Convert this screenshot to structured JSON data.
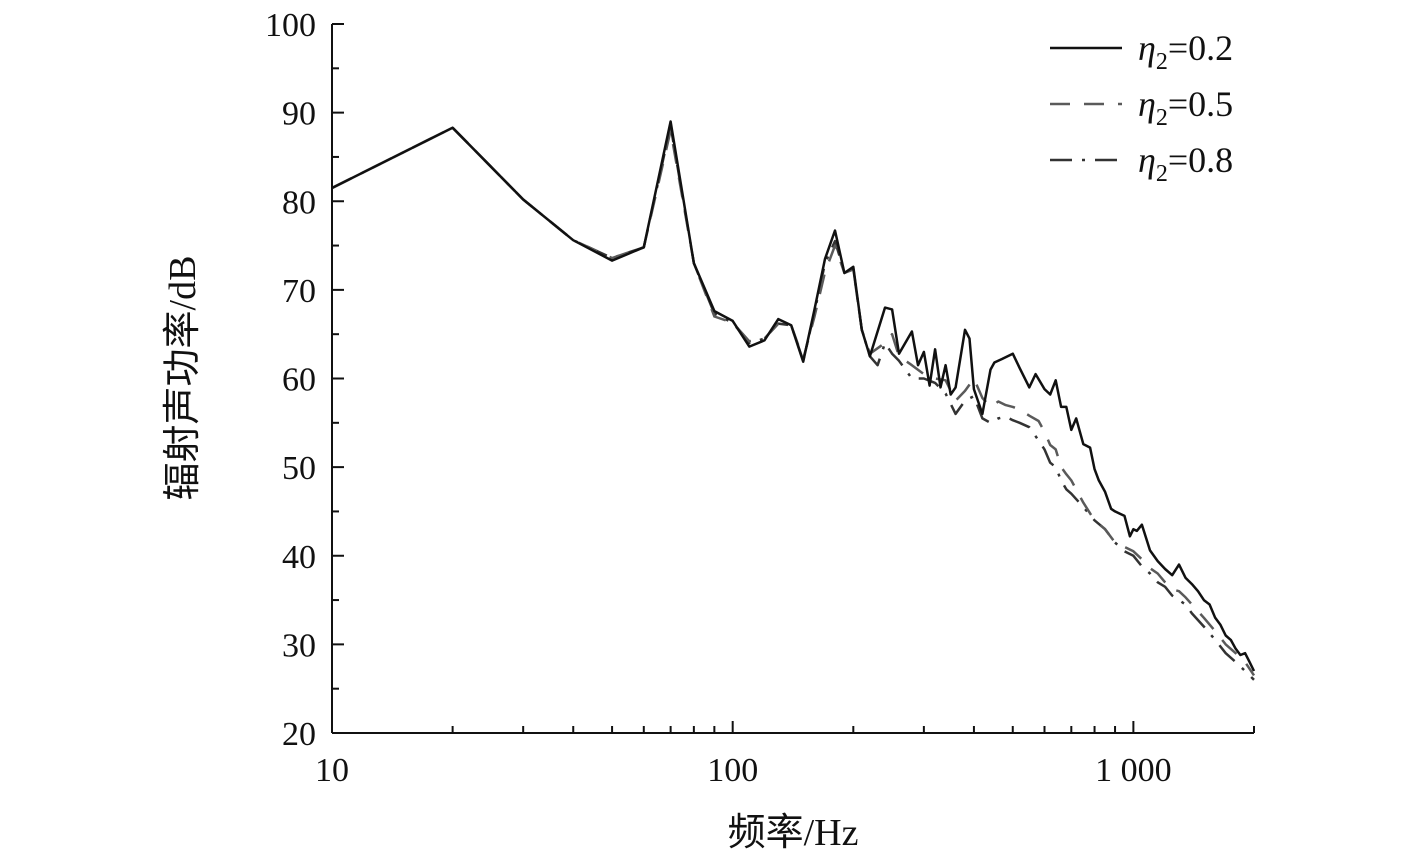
{
  "chart_data": {
    "type": "line",
    "title": "",
    "xlabel": "频率/Hz",
    "ylabel": "辐射声功率/dB",
    "x_scale": "log",
    "xlim": [
      10,
      2000
    ],
    "ylim": [
      20,
      100
    ],
    "x_ticks": [
      10,
      100,
      1000
    ],
    "x_tick_labels": [
      "10",
      "100",
      "1 000"
    ],
    "y_ticks": [
      20,
      30,
      40,
      50,
      60,
      70,
      80,
      90,
      100
    ],
    "y_tick_labels": [
      "20",
      "30",
      "40",
      "50",
      "60",
      "70",
      "80",
      "90",
      "100"
    ],
    "grid": false,
    "legend_position": "top-right",
    "series": [
      {
        "name": "η2=0.2",
        "legend_symbol": "η",
        "legend_sub": "2",
        "legend_value": "=0.2",
        "color": "#111111",
        "dash": "",
        "x": [
          10,
          20,
          30,
          40,
          50,
          60,
          70,
          80,
          90,
          100,
          110,
          120,
          130,
          140,
          150,
          160,
          170,
          180,
          190,
          200,
          210,
          220,
          240,
          250,
          260,
          280,
          290,
          300,
          310,
          320,
          330,
          340,
          350,
          360,
          380,
          390,
          400,
          420,
          440,
          450,
          470,
          500,
          520,
          550,
          570,
          600,
          620,
          640,
          660,
          680,
          700,
          720,
          750,
          780,
          800,
          820,
          850,
          880,
          900,
          920,
          950,
          980,
          1000,
          1020,
          1050,
          1100,
          1150,
          1200,
          1250,
          1300,
          1350,
          1400,
          1450,
          1500,
          1550,
          1600,
          1650,
          1700,
          1750,
          1800,
          1850,
          1900,
          1950,
          2000
        ],
        "y": [
          81.5,
          88.3,
          80.2,
          75.6,
          73.3,
          74.8,
          89.0,
          73.0,
          67.6,
          66.5,
          63.6,
          64.3,
          66.7,
          66.0,
          61.9,
          67.8,
          73.5,
          76.7,
          71.9,
          72.6,
          65.5,
          62.5,
          68.0,
          67.8,
          62.8,
          65.3,
          61.5,
          63.0,
          59.2,
          63.3,
          59.0,
          61.5,
          58.2,
          59.0,
          65.5,
          64.5,
          58.8,
          56.0,
          61.0,
          61.8,
          62.2,
          62.8,
          61.2,
          59.0,
          60.5,
          58.8,
          58.2,
          59.8,
          56.8,
          56.8,
          54.2,
          55.5,
          52.6,
          52.2,
          49.8,
          48.5,
          47.2,
          45.3,
          45.0,
          44.8,
          44.5,
          42.2,
          43.0,
          42.8,
          43.5,
          40.6,
          39.4,
          38.5,
          37.8,
          39.0,
          37.5,
          36.8,
          36.0,
          35.0,
          34.5,
          33.0,
          32.2,
          31.0,
          30.5,
          29.5,
          28.8,
          29.0,
          28.0,
          27.0
        ]
      },
      {
        "name": "η2=0.5",
        "legend_symbol": "η",
        "legend_sub": "2",
        "legend_value": "=0.5",
        "color": "#5a5a5a",
        "dash": "20 14",
        "x": [
          10,
          20,
          30,
          40,
          50,
          60,
          70,
          80,
          90,
          100,
          110,
          120,
          130,
          140,
          150,
          160,
          170,
          180,
          190,
          200,
          210,
          220,
          240,
          250,
          260,
          280,
          300,
          320,
          340,
          360,
          380,
          400,
          420,
          440,
          460,
          480,
          500,
          520,
          550,
          580,
          600,
          620,
          640,
          660,
          680,
          700,
          750,
          800,
          850,
          900,
          950,
          1000,
          1050,
          1100,
          1150,
          1200,
          1250,
          1300,
          1350,
          1400,
          1500,
          1600,
          1700,
          1800,
          1900,
          2000
        ],
        "y": [
          81.5,
          88.3,
          80.2,
          75.6,
          73.6,
          74.8,
          88.0,
          73.0,
          67.0,
          66.3,
          64.2,
          64.5,
          66.2,
          66.0,
          62.2,
          67.0,
          72.0,
          75.0,
          71.9,
          72.3,
          65.5,
          62.8,
          64.0,
          65.0,
          62.5,
          61.5,
          60.5,
          60.0,
          59.8,
          57.5,
          58.6,
          60.0,
          57.8,
          56.8,
          57.4,
          57.0,
          56.8,
          56.5,
          55.8,
          55.2,
          54.0,
          52.5,
          52.0,
          50.0,
          49.2,
          48.5,
          46.0,
          44.0,
          43.0,
          41.5,
          41.0,
          40.5,
          39.6,
          38.6,
          38.0,
          37.0,
          36.2,
          36.0,
          35.3,
          34.5,
          33.0,
          31.5,
          30.0,
          29.0,
          28.0,
          26.5
        ]
      },
      {
        "name": "η2=0.8",
        "legend_symbol": "η",
        "legend_sub": "2",
        "legend_value": "=0.8",
        "color": "#333333",
        "dash": "22 10 3 10",
        "x": [
          10,
          20,
          30,
          40,
          50,
          60,
          70,
          80,
          90,
          100,
          110,
          120,
          130,
          140,
          150,
          160,
          170,
          180,
          190,
          200,
          210,
          220,
          230,
          240,
          250,
          260,
          280,
          300,
          320,
          340,
          360,
          380,
          400,
          420,
          440,
          460,
          480,
          500,
          520,
          550,
          580,
          600,
          620,
          640,
          660,
          680,
          700,
          750,
          800,
          850,
          900,
          950,
          1000,
          1050,
          1100,
          1150,
          1200,
          1250,
          1300,
          1350,
          1400,
          1500,
          1600,
          1700,
          1800,
          1900,
          2000
        ],
        "y": [
          81.5,
          88.3,
          80.2,
          75.6,
          73.6,
          74.8,
          88.5,
          73.0,
          67.3,
          66.3,
          64.0,
          64.5,
          66.2,
          66.0,
          62.0,
          67.5,
          73.0,
          75.5,
          72.0,
          72.4,
          65.5,
          62.5,
          61.5,
          64.0,
          62.8,
          62.0,
          60.0,
          60.0,
          59.5,
          58.3,
          56.0,
          57.5,
          58.0,
          55.5,
          55.0,
          55.5,
          55.7,
          55.3,
          55.0,
          54.5,
          53.0,
          52.0,
          50.5,
          50.0,
          48.5,
          47.5,
          47.0,
          45.5,
          44.0,
          43.0,
          41.5,
          40.5,
          40.0,
          38.8,
          38.0,
          37.0,
          36.5,
          35.5,
          35.0,
          34.5,
          33.5,
          32.0,
          30.5,
          29.0,
          28.0,
          27.0,
          26.0
        ]
      }
    ]
  }
}
